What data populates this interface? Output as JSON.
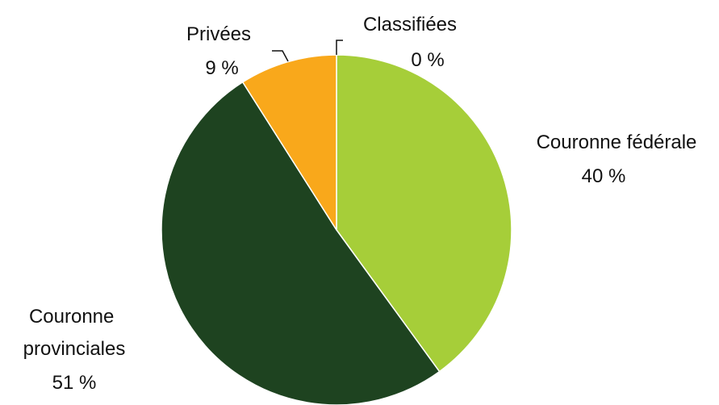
{
  "chart_data": {
    "type": "pie",
    "title": "",
    "slices": [
      {
        "label": "Couronne fédérale",
        "label_lines": [
          "Couronne fédérale"
        ],
        "value": 40,
        "value_label": "40 %",
        "color": "#a6ce39"
      },
      {
        "label": "Couronne provinciales",
        "label_lines": [
          "Couronne",
          "provinciales"
        ],
        "value": 51,
        "value_label": "51 %",
        "color": "#1e4320"
      },
      {
        "label": "Privées",
        "label_lines": [
          "Privées"
        ],
        "value": 9,
        "value_label": "9 %",
        "color": "#f9a81b"
      },
      {
        "label": "Classifiées",
        "label_lines": [
          "Classifiées"
        ],
        "value": 0,
        "value_label": "0 %",
        "color": "#a6ce39"
      }
    ],
    "start_angle": "12 o'clock",
    "direction": "clockwise",
    "legend": "none"
  }
}
